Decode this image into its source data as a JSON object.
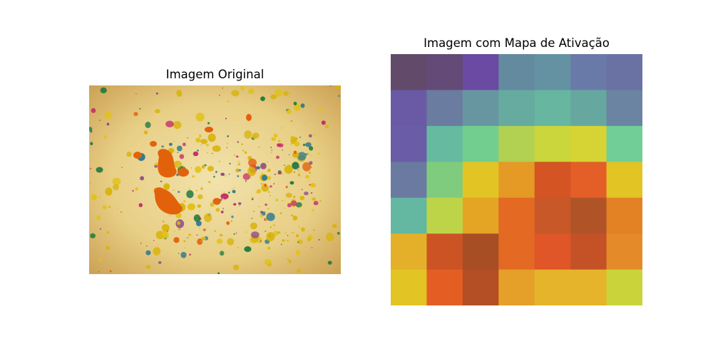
{
  "chart_data": [
    {
      "type": "image",
      "title": "Imagem Original",
      "content": "paint splatter on yellow paper"
    },
    {
      "type": "heatmap",
      "title": "Imagem com Mapa de Ativação",
      "rows": 7,
      "cols": 7,
      "cell_colors": [
        [
          "#624a6a",
          "#644a76",
          "#6a4aa2",
          "#648aa0",
          "#6492a2",
          "#6a7aa8",
          "#6a72a4"
        ],
        [
          "#6a5aa6",
          "#6a7ca0",
          "#6896a0",
          "#66aaa0",
          "#66b6a0",
          "#66a8a0",
          "#6a84a2"
        ],
        [
          "#6a5ca6",
          "#66baa0",
          "#72ce8e",
          "#b2d052",
          "#cad63c",
          "#d6d434",
          "#70ce96"
        ],
        [
          "#6a7aa0",
          "#80cc7e",
          "#e2c424",
          "#e49a24",
          "#d45424",
          "#e45e28",
          "#e2c424"
        ],
        [
          "#64b8a2",
          "#bed448",
          "#e4a424",
          "#e46a24",
          "#c85828",
          "#b05428",
          "#e28224"
        ],
        [
          "#e4b02a",
          "#cc5424",
          "#a84e24",
          "#e46a24",
          "#e05628",
          "#c45226",
          "#e48a28"
        ],
        [
          "#e2c424",
          "#e45e24",
          "#b44e24",
          "#e4a028",
          "#e6b42a",
          "#e6b42a",
          "#cad43a"
        ]
      ]
    }
  ]
}
